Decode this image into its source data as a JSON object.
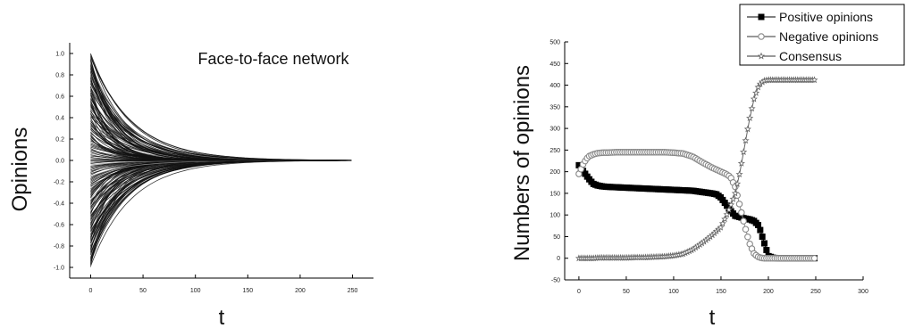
{
  "chart_data": [
    {
      "type": "line",
      "title": "Face-to-face network",
      "xlabel": "t",
      "ylabel": "Opinions",
      "xlim": [
        -20,
        270
      ],
      "ylim": [
        -1.1,
        1.1
      ],
      "xticks": [
        "0",
        "50",
        "100",
        "150",
        "200",
        "250"
      ],
      "yticks": [
        "1.0",
        "0.8",
        "0.6",
        "0.4",
        "0.2",
        "0.0",
        "-0.2",
        "-0.4",
        "-0.6",
        "-0.8",
        "-1.0"
      ],
      "series_description": "Opinion trajectories of individual agents starting uniformly in [-1, 1] and converging to 0.",
      "initial_range": [
        -1.0,
        1.0
      ],
      "converged_value": 0.0,
      "x_end": 250,
      "grid": false,
      "line_color": "#000000"
    },
    {
      "type": "line",
      "xlabel": "t",
      "ylabel": "Numbers of opinions",
      "xlim": [
        -15,
        300
      ],
      "ylim": [
        -50,
        500
      ],
      "xticks": [
        "0",
        "50",
        "100",
        "150",
        "200",
        "250",
        "300"
      ],
      "yticks": [
        "500",
        "450",
        "400",
        "350",
        "300",
        "250",
        "200",
        "150",
        "100",
        "50",
        "0",
        "-50"
      ],
      "legend_position": "top-right",
      "grid": false,
      "x": [
        0,
        5,
        10,
        15,
        20,
        25,
        30,
        40,
        50,
        60,
        70,
        80,
        90,
        100,
        110,
        120,
        130,
        140,
        145,
        150,
        155,
        160,
        165,
        170,
        175,
        180,
        185,
        190,
        195,
        200,
        205,
        210,
        220,
        230,
        240,
        250
      ],
      "series": [
        {
          "name": "Positive opinions",
          "marker": "filled-square",
          "color": "#000000",
          "values": [
            215,
            200,
            185,
            172,
            168,
            166,
            165,
            164,
            163,
            162,
            161,
            160,
            159,
            158,
            157,
            156,
            153,
            150,
            148,
            140,
            125,
            110,
            98,
            95,
            92,
            90,
            86,
            75,
            40,
            5,
            1,
            0,
            0,
            0,
            0,
            0
          ]
        },
        {
          "name": "Negative opinions",
          "marker": "open-circle",
          "color": "#888888",
          "values": [
            195,
            220,
            235,
            240,
            243,
            244,
            244,
            245,
            245,
            245,
            245,
            245,
            245,
            244,
            242,
            235,
            222,
            210,
            205,
            200,
            195,
            188,
            165,
            120,
            75,
            35,
            10,
            2,
            0,
            0,
            0,
            0,
            0,
            0,
            0,
            0
          ]
        },
        {
          "name": "Consensus",
          "marker": "open-star",
          "color": "#666666",
          "values": [
            0,
            0,
            0,
            0,
            1,
            1,
            1,
            1,
            1,
            2,
            2,
            3,
            4,
            6,
            10,
            20,
            35,
            52,
            62,
            72,
            95,
            120,
            150,
            200,
            260,
            320,
            370,
            400,
            410,
            412,
            412,
            412,
            412,
            412,
            412,
            412
          ]
        }
      ]
    }
  ]
}
